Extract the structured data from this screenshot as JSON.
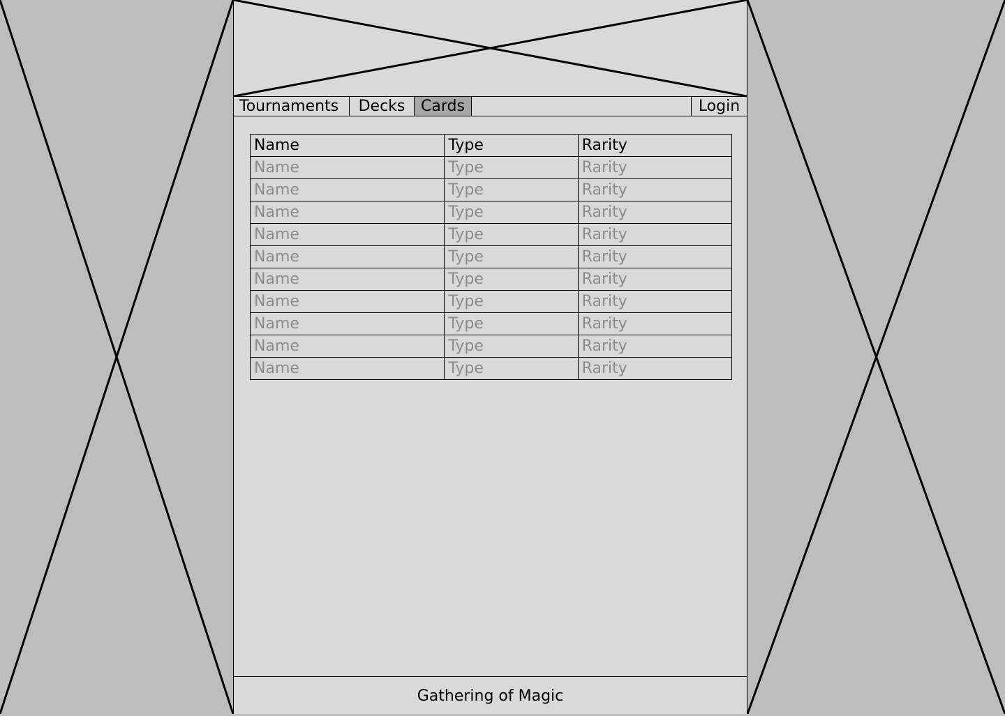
{
  "nav": {
    "tabs": [
      {
        "label": "Tournaments",
        "selected": false
      },
      {
        "label": "Decks",
        "selected": false
      },
      {
        "label": "Cards",
        "selected": true
      }
    ],
    "login_label": "Login"
  },
  "table": {
    "headers": {
      "name": "Name",
      "type": "Type",
      "rarity": "Rarity"
    },
    "rows": [
      {
        "name": "Name",
        "type": "Type",
        "rarity": "Rarity"
      },
      {
        "name": "Name",
        "type": "Type",
        "rarity": "Rarity"
      },
      {
        "name": "Name",
        "type": "Type",
        "rarity": "Rarity"
      },
      {
        "name": "Name",
        "type": "Type",
        "rarity": "Rarity"
      },
      {
        "name": "Name",
        "type": "Type",
        "rarity": "Rarity"
      },
      {
        "name": "Name",
        "type": "Type",
        "rarity": "Rarity"
      },
      {
        "name": "Name",
        "type": "Type",
        "rarity": "Rarity"
      },
      {
        "name": "Name",
        "type": "Type",
        "rarity": "Rarity"
      },
      {
        "name": "Name",
        "type": "Type",
        "rarity": "Rarity"
      },
      {
        "name": "Name",
        "type": "Type",
        "rarity": "Rarity"
      }
    ]
  },
  "footer": {
    "text": "Gathering of Magic"
  },
  "colors": {
    "page_bg": "#bdbdbd",
    "panel_bg": "#d9d9d9",
    "selected_tab_bg": "#a6a6a6",
    "placeholder_text": "#8c8c8c"
  },
  "icons": {
    "banner": "image-placeholder-icon",
    "side_left": "image-placeholder-icon",
    "side_right": "image-placeholder-icon"
  }
}
